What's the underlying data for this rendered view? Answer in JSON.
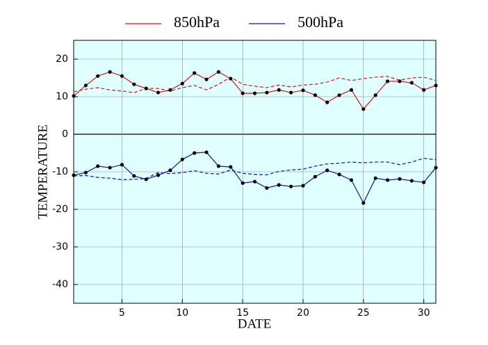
{
  "chart_data": {
    "type": "line",
    "xlabel": "DATE",
    "ylabel": "TEMPERATURE",
    "x": [
      1,
      2,
      3,
      4,
      5,
      6,
      7,
      8,
      9,
      10,
      11,
      12,
      13,
      14,
      15,
      16,
      17,
      18,
      19,
      20,
      21,
      22,
      23,
      24,
      25,
      26,
      27,
      28,
      29,
      30,
      31
    ],
    "xlim": [
      1,
      31
    ],
    "xticks": [
      5,
      10,
      15,
      20,
      25,
      30
    ],
    "ylim": [
      -45,
      25
    ],
    "yticks": [
      -40,
      -30,
      -20,
      -10,
      0,
      10,
      20
    ],
    "grid": true,
    "background": "#e0ffff",
    "series": [
      {
        "name": "850hPa",
        "color": "#dd1111",
        "values": [
          10.2,
          13,
          15.5,
          16.6,
          15.5,
          13.3,
          12.2,
          11.1,
          11.8,
          13.5,
          16.3,
          14.6,
          16.6,
          14.8,
          10.9,
          10.9,
          11.1,
          11.8,
          11.1,
          11.7,
          10.4,
          8.5,
          10.4,
          11.8,
          6.7,
          10.4,
          14.1,
          14.1,
          13.7,
          11.8,
          13
        ],
        "dashed_values": [
          11.3,
          12,
          12.4,
          11.8,
          11.5,
          11.1,
          12.2,
          12.2,
          11.5,
          12.4,
          13,
          11.8,
          13.3,
          15.2,
          13.3,
          12.8,
          12.4,
          13.1,
          12.6,
          13.1,
          13.3,
          13.9,
          15,
          14.3,
          14.8,
          15.2,
          15.4,
          14.4,
          15,
          15.2,
          14.3
        ]
      },
      {
        "name": "500hPa",
        "color": "#1111aa",
        "values": [
          -10.9,
          -10.2,
          -8.5,
          -8.9,
          -8.1,
          -11.1,
          -12,
          -10.9,
          -9.6,
          -6.7,
          -5,
          -4.8,
          -8.5,
          -8.7,
          -13,
          -12.6,
          -14.3,
          -13.5,
          -13.9,
          -13.7,
          -11.3,
          -9.6,
          -10.7,
          -12.2,
          -18.3,
          -11.7,
          -12.2,
          -11.9,
          -12.4,
          -12.8,
          -8.9
        ],
        "dashed_values": [
          -11.1,
          -11,
          -11.5,
          -11.7,
          -12.1,
          -12,
          -11.8,
          -10.2,
          -10.5,
          -10.2,
          -9.7,
          -10.4,
          -10.6,
          -9.5,
          -10.4,
          -10.7,
          -10.8,
          -9.9,
          -9.5,
          -9.3,
          -8.5,
          -7.9,
          -7.7,
          -7.4,
          -7.6,
          -7.4,
          -7.4,
          -8.1,
          -7.4,
          -6.4,
          -6.8
        ]
      }
    ]
  }
}
